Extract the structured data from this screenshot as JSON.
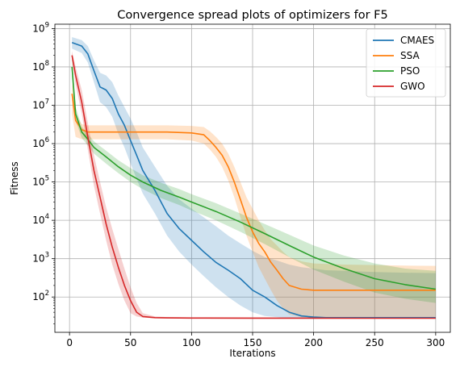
{
  "chart_data": {
    "type": "line",
    "title": "Convergence spread plots of optimizers for F5",
    "xlabel": "Iterations",
    "ylabel": "Fitness",
    "yscale": "log",
    "xlim": [
      -12,
      312
    ],
    "ylim": [
      12,
      1300000000
    ],
    "xticks": [
      0,
      50,
      100,
      150,
      200,
      250,
      300
    ],
    "xtick_labels": [
      "0",
      "50",
      "100",
      "150",
      "200",
      "250",
      "300"
    ],
    "yticks_exp": [
      2,
      3,
      4,
      5,
      6,
      7,
      8,
      9
    ],
    "ytick_base": "10",
    "grid": true,
    "legend_position": "top-right",
    "series": [
      {
        "name": "CMAES",
        "color": "#1f77b4",
        "x": [
          2,
          10,
          15,
          20,
          25,
          30,
          35,
          40,
          45,
          50,
          55,
          60,
          70,
          80,
          90,
          100,
          110,
          120,
          130,
          140,
          150,
          160,
          170,
          180,
          190,
          200,
          210,
          225,
          250,
          275,
          300
        ],
        "y": [
          430000000,
          350000000,
          220000000,
          80000000,
          30000000,
          25000000,
          15000000,
          6000000,
          3000000,
          1200000,
          500000,
          200000,
          60000,
          15000,
          6000,
          3000,
          1500,
          800,
          500,
          300,
          150,
          100,
          60,
          40,
          32,
          30,
          29,
          29,
          29,
          29,
          29
        ],
        "lower": [
          300000000,
          230000000,
          130000000,
          40000000,
          12000000,
          9000000,
          5000000,
          1800000,
          800000,
          300000,
          120000,
          50000,
          15000,
          4000,
          1500,
          700,
          350,
          180,
          100,
          60,
          40,
          32,
          30,
          28,
          27,
          27,
          27,
          27,
          27,
          27,
          27
        ],
        "upper": [
          600000000,
          500000000,
          350000000,
          150000000,
          70000000,
          60000000,
          40000000,
          18000000,
          9000000,
          4500000,
          2000000,
          800000,
          250000,
          80000,
          35000,
          20000,
          12000,
          7000,
          4000,
          2500,
          1600,
          1100,
          900,
          700,
          600,
          550,
          500,
          480,
          450,
          430,
          420
        ]
      },
      {
        "name": "SSA",
        "color": "#ff7f0e",
        "x": [
          2,
          5,
          10,
          15,
          20,
          40,
          60,
          80,
          100,
          110,
          115,
          120,
          125,
          130,
          135,
          140,
          145,
          150,
          155,
          160,
          165,
          170,
          175,
          180,
          190,
          200,
          225,
          250,
          275,
          300
        ],
        "y": [
          20000000,
          4000000,
          2300000,
          2000000,
          2000000,
          2000000,
          2000000,
          2000000,
          1900000,
          1700000,
          1200000,
          800000,
          500000,
          250000,
          100000,
          35000,
          12000,
          5000,
          2500,
          1500,
          800,
          500,
          300,
          200,
          160,
          150,
          150,
          150,
          150,
          150
        ],
        "lower": [
          6000000,
          1500000,
          1300000,
          1300000,
          1300000,
          1300000,
          1300000,
          1300000,
          1200000,
          1000000,
          700000,
          450000,
          250000,
          110000,
          40000,
          12000,
          4000,
          1500,
          600,
          300,
          150,
          80,
          50,
          35,
          30,
          28,
          28,
          28,
          28,
          28
        ],
        "upper": [
          40000000,
          6000000,
          3200000,
          3000000,
          3000000,
          3000000,
          3000000,
          3000000,
          2900000,
          2700000,
          2100000,
          1500000,
          1000000,
          550000,
          250000,
          100000,
          40000,
          20000,
          10000,
          5500,
          3200,
          2200,
          1500,
          1100,
          850,
          750,
          700,
          680,
          660,
          650
        ]
      },
      {
        "name": "PSO",
        "color": "#2ca02c",
        "x": [
          2,
          5,
          10,
          15,
          20,
          30,
          40,
          50,
          60,
          75,
          90,
          100,
          120,
          140,
          160,
          180,
          200,
          225,
          250,
          275,
          300
        ],
        "y": [
          100000000,
          6000000,
          2000000,
          1300000,
          800000,
          450000,
          250000,
          150000,
          100000,
          60000,
          40000,
          30000,
          17000,
          9000,
          4500,
          2200,
          1100,
          550,
          300,
          210,
          160
        ],
        "lower": [
          50000000,
          4000000,
          1400000,
          900000,
          550000,
          300000,
          170000,
          100000,
          65000,
          38000,
          25000,
          18000,
          10000,
          5000,
          2400,
          1100,
          520,
          250,
          130,
          90,
          70
        ],
        "upper": [
          200000000,
          9000000,
          2800000,
          1800000,
          1150000,
          650000,
          370000,
          230000,
          150000,
          95000,
          65000,
          48000,
          28000,
          15000,
          8000,
          4200,
          2200,
          1200,
          750,
          550,
          480
        ]
      },
      {
        "name": "GWO",
        "color": "#d62728",
        "x": [
          2,
          5,
          10,
          15,
          20,
          25,
          30,
          35,
          40,
          45,
          50,
          55,
          60,
          70,
          80,
          100,
          150,
          200,
          250,
          300
        ],
        "y": [
          200000000,
          60000000,
          12000000,
          1500000,
          200000,
          40000,
          8000,
          2000,
          600,
          200,
          80,
          40,
          31,
          29,
          28.5,
          28.3,
          28.2,
          28.1,
          28,
          28
        ],
        "lower": [
          150000000,
          35000000,
          6000000,
          700000,
          80000,
          15000,
          3000,
          700,
          220,
          80,
          38,
          31,
          29,
          28,
          27.5,
          27.3,
          27.2,
          27.1,
          27,
          27
        ],
        "upper": [
          260000000,
          100000000,
          25000000,
          3500000,
          500000,
          100000,
          22000,
          6000,
          1800,
          550,
          180,
          70,
          38,
          31,
          30,
          29.5,
          29.4,
          29.3,
          29.2,
          29.2
        ]
      }
    ]
  }
}
